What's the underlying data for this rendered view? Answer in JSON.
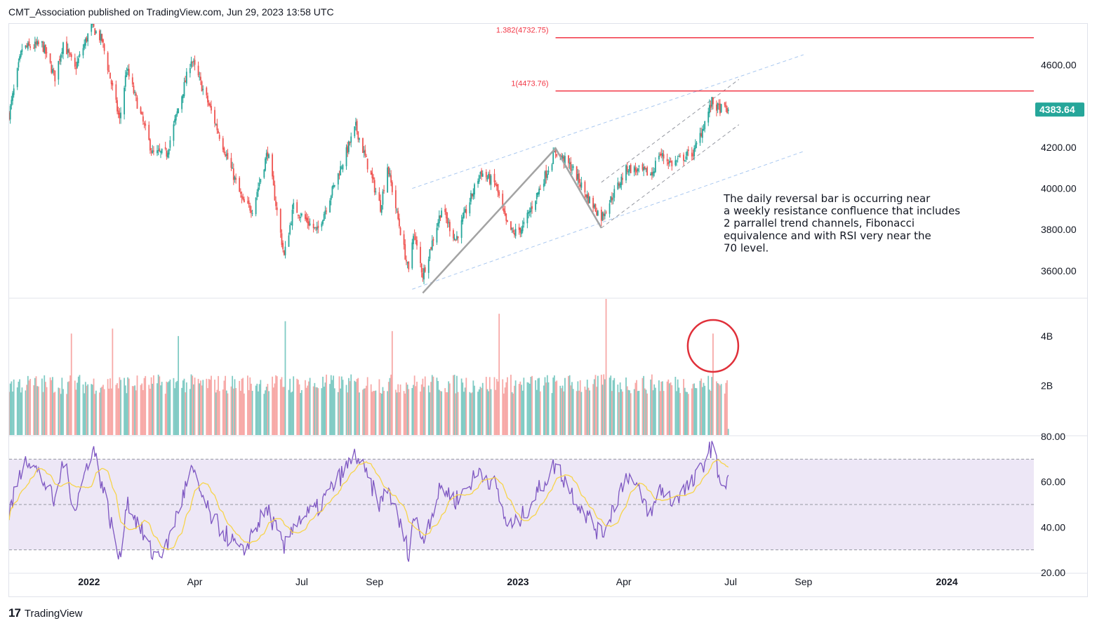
{
  "header": {
    "publisher_line": "CMT_Association published on TradingView.com, Jun 29, 2023 13:58 UTC"
  },
  "footer": {
    "brand": "TradingView",
    "logo_glyph": "17"
  },
  "colors": {
    "up": "#26a69a",
    "down": "#ef5350",
    "volume_up": "#80cbc4",
    "volume_down": "#f7a9a7",
    "fib": "#f23645",
    "trend": "#a9c8f0",
    "channel_inner": "#9598a1",
    "zigzag": "#a3a3a3",
    "rsi": "#7e57c2",
    "rsi_ma": "#f7d44a",
    "rsi_band": "#ede7f6",
    "circle": "#e0303a",
    "last_price": "#26a69a"
  },
  "annotation": {
    "lines": [
      "The daily reversal bar is occurring near",
      "a weekly resistance confluence that includes",
      "2 parrallel trend channels, Fibonacci",
      "equivalence and with RSI very near the",
      "70 level."
    ]
  },
  "chart_data": [
    {
      "type": "candlestick",
      "title": "",
      "x_range": [
        "2021-10-25",
        "2024-03-15"
      ],
      "ylim": [
        3470,
        4800
      ],
      "y_ticks": [
        "4600.00",
        "4400.00",
        "4200.00",
        "4000.00",
        "3800.00",
        "3600.00"
      ],
      "y_tick_values": [
        4600,
        4400,
        4200,
        4000,
        3800,
        3600
      ],
      "x_ticks": [
        {
          "label": "2022",
          "date": "2022-01-01",
          "bold": true
        },
        {
          "label": "Apr",
          "date": "2022-04-01",
          "bold": false
        },
        {
          "label": "Jul",
          "date": "2022-07-01",
          "bold": false
        },
        {
          "label": "Sep",
          "date": "2022-09-01",
          "bold": false
        },
        {
          "label": "2023",
          "date": "2023-01-01",
          "bold": true
        },
        {
          "label": "Apr",
          "date": "2023-04-01",
          "bold": false
        },
        {
          "label": "Jul",
          "date": "2023-07-01",
          "bold": false
        },
        {
          "label": "Sep",
          "date": "2023-09-01",
          "bold": false
        },
        {
          "label": "2024",
          "date": "2024-01-01",
          "bold": true
        }
      ],
      "last_price": "4383.64",
      "fibonacci": [
        {
          "label": "1.382(4732.75)",
          "value": 4732.75,
          "from": "2023-02-02",
          "to": "2024-03-15"
        },
        {
          "label": "1(4473.76)",
          "value": 4473.76,
          "from": "2023-02-02",
          "to": "2024-03-15"
        }
      ],
      "path_points": [
        [
          "2021-10-25",
          4360
        ],
        [
          "2021-11-05",
          4680
        ],
        [
          "2021-11-22",
          4700
        ],
        [
          "2021-12-03",
          4540
        ],
        [
          "2021-12-10",
          4710
        ],
        [
          "2021-12-20",
          4580
        ],
        [
          "2022-01-03",
          4790
        ],
        [
          "2022-01-12",
          4720
        ],
        [
          "2022-01-27",
          4330
        ],
        [
          "2022-02-02",
          4580
        ],
        [
          "2022-02-24",
          4170
        ],
        [
          "2022-03-08",
          4170
        ],
        [
          "2022-03-29",
          4630
        ],
        [
          "2022-04-14",
          4390
        ],
        [
          "2022-05-12",
          3930
        ],
        [
          "2022-05-20",
          3900
        ],
        [
          "2022-06-02",
          4180
        ],
        [
          "2022-06-16",
          3670
        ],
        [
          "2022-06-24",
          3910
        ],
        [
          "2022-07-14",
          3790
        ],
        [
          "2022-08-16",
          4300
        ],
        [
          "2022-09-06",
          3910
        ],
        [
          "2022-09-12",
          4110
        ],
        [
          "2022-09-30",
          3590
        ],
        [
          "2022-10-04",
          3790
        ],
        [
          "2022-10-12",
          3580
        ],
        [
          "2022-10-28",
          3900
        ],
        [
          "2022-11-09",
          3750
        ],
        [
          "2022-11-30",
          4080
        ],
        [
          "2022-12-13",
          4020
        ],
        [
          "2022-12-22",
          3830
        ],
        [
          "2022-12-28",
          3780
        ],
        [
          "2023-01-05",
          3810
        ],
        [
          "2023-02-02",
          4180
        ],
        [
          "2023-02-16",
          4100
        ],
        [
          "2023-03-01",
          3960
        ],
        [
          "2023-03-13",
          3860
        ],
        [
          "2023-04-04",
          4100
        ],
        [
          "2023-04-25",
          4070
        ],
        [
          "2023-05-01",
          4170
        ],
        [
          "2023-05-12",
          4120
        ],
        [
          "2023-05-31",
          4180
        ],
        [
          "2023-06-15",
          4420
        ],
        [
          "2023-06-20",
          4390
        ],
        [
          "2023-06-29",
          4383.64
        ]
      ],
      "zigzag": [
        [
          "2022-10-12",
          3492
        ],
        [
          "2023-02-02",
          4195
        ],
        [
          "2023-03-13",
          3808
        ]
      ],
      "channels": [
        {
          "style": "outer",
          "from": [
            "2022-10-03",
            3510
          ],
          "to": [
            "2023-09-01",
            4180
          ]
        },
        {
          "style": "outer",
          "from": [
            "2022-10-03",
            4000
          ],
          "to": [
            "2023-09-01",
            4650
          ]
        },
        {
          "style": "inner",
          "from": [
            "2023-03-13",
            3808
          ],
          "to": [
            "2023-07-08",
            4310
          ]
        },
        {
          "style": "inner",
          "from": [
            "2023-03-13",
            4030
          ],
          "to": [
            "2023-07-08",
            4530
          ]
        }
      ]
    },
    {
      "type": "bar",
      "title": "Volume",
      "ylim": [
        0,
        5.5
      ],
      "y_ticks": [
        "4B",
        "2B"
      ],
      "y_tick_values": [
        4,
        2
      ],
      "volume_base": 1.9,
      "volume_spikes": [
        [
          "2021-12-17",
          4.1
        ],
        [
          "2022-01-21",
          4.3
        ],
        [
          "2022-03-18",
          4.0
        ],
        [
          "2022-06-17",
          4.6
        ],
        [
          "2022-09-16",
          4.2
        ],
        [
          "2022-12-16",
          4.9
        ],
        [
          "2023-03-17",
          5.5
        ],
        [
          "2023-06-16",
          4.1
        ]
      ],
      "highlight_circle": {
        "date": "2023-06-16",
        "value": 3.6
      }
    },
    {
      "type": "line",
      "title": "RSI",
      "ylim": [
        20,
        80
      ],
      "y_ticks": [
        "80.00",
        "60.00",
        "40.00",
        "20.00"
      ],
      "y_tick_values": [
        80,
        60,
        40,
        20
      ],
      "band": [
        30,
        70
      ],
      "midline": 50,
      "rsi_points": [
        [
          "2021-10-25",
          46
        ],
        [
          "2021-11-08",
          72
        ],
        [
          "2021-11-26",
          58
        ],
        [
          "2021-12-03",
          50
        ],
        [
          "2021-12-10",
          70
        ],
        [
          "2021-12-20",
          48
        ],
        [
          "2022-01-04",
          76
        ],
        [
          "2022-01-14",
          55
        ],
        [
          "2022-01-27",
          25
        ],
        [
          "2022-02-02",
          52
        ],
        [
          "2022-02-24",
          28
        ],
        [
          "2022-03-07",
          30
        ],
        [
          "2022-03-29",
          65
        ],
        [
          "2022-04-14",
          45
        ],
        [
          "2022-05-12",
          28
        ],
        [
          "2022-05-20",
          38
        ],
        [
          "2022-06-02",
          48
        ],
        [
          "2022-06-16",
          30
        ],
        [
          "2022-06-24",
          42
        ],
        [
          "2022-07-14",
          48
        ],
        [
          "2022-08-16",
          72
        ],
        [
          "2022-09-06",
          50
        ],
        [
          "2022-09-12",
          58
        ],
        [
          "2022-09-30",
          29
        ],
        [
          "2022-10-04",
          45
        ],
        [
          "2022-10-12",
          35
        ],
        [
          "2022-10-28",
          58
        ],
        [
          "2022-11-09",
          52
        ],
        [
          "2022-11-30",
          65
        ],
        [
          "2022-12-13",
          58
        ],
        [
          "2022-12-22",
          42
        ],
        [
          "2022-12-28",
          40
        ],
        [
          "2023-01-05",
          45
        ],
        [
          "2023-02-02",
          68
        ],
        [
          "2023-02-16",
          55
        ],
        [
          "2023-03-01",
          45
        ],
        [
          "2023-03-13",
          36
        ],
        [
          "2023-04-04",
          64
        ],
        [
          "2023-04-25",
          45
        ],
        [
          "2023-05-01",
          58
        ],
        [
          "2023-05-12",
          52
        ],
        [
          "2023-05-31",
          60
        ],
        [
          "2023-06-15",
          76
        ],
        [
          "2023-06-20",
          65
        ],
        [
          "2023-06-26",
          57
        ],
        [
          "2023-06-29",
          63
        ]
      ]
    }
  ]
}
